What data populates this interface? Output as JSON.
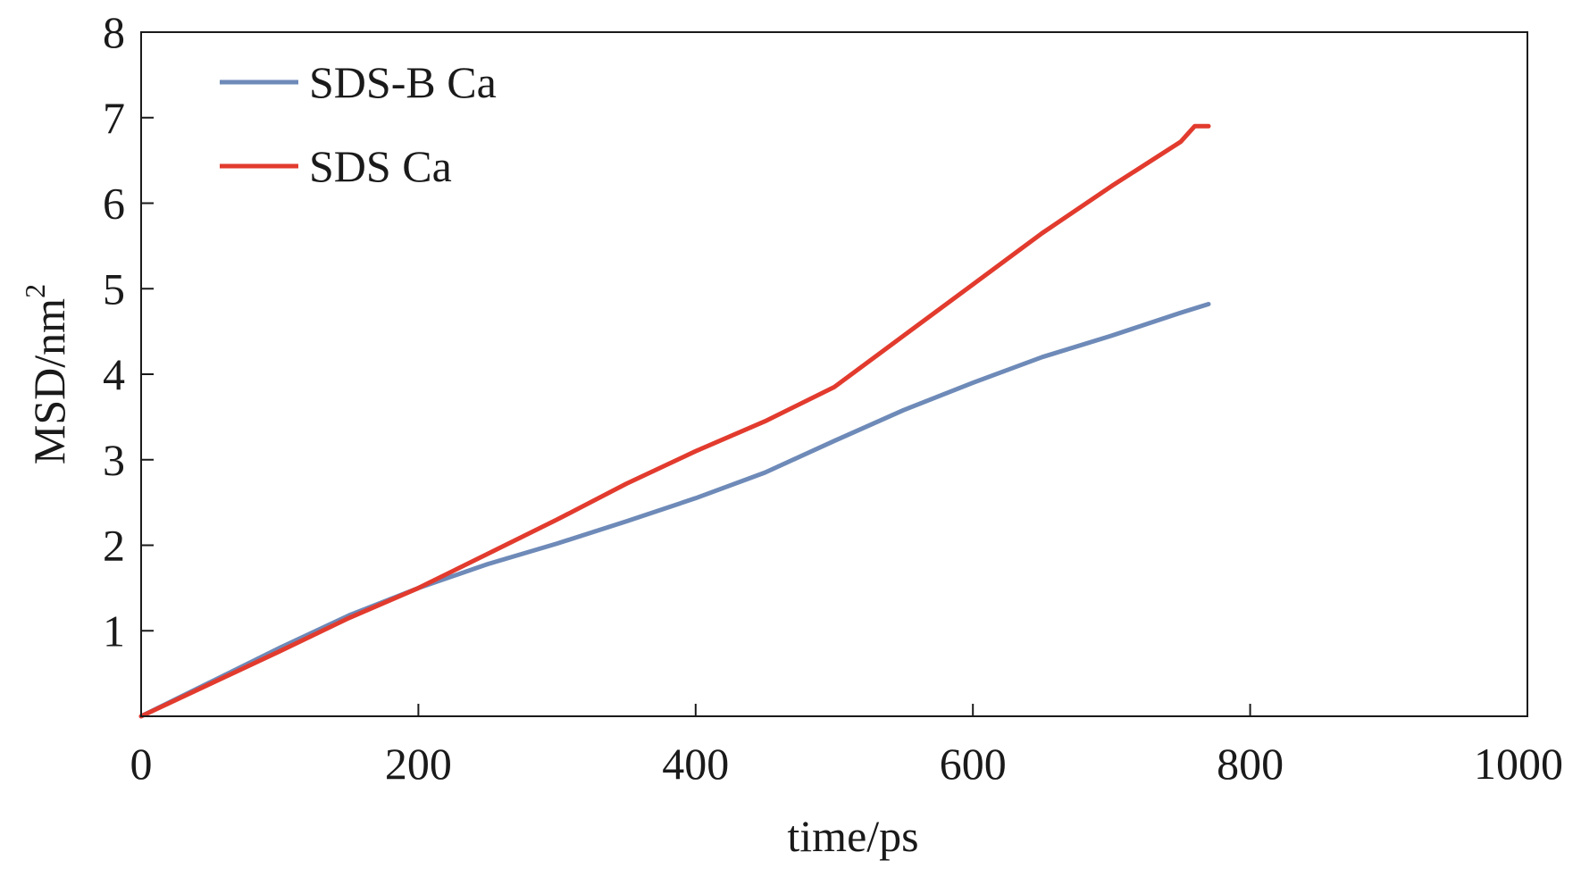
{
  "chart_data": {
    "type": "line",
    "xlabel": "time/ps",
    "ylabel_main": "MSD/nm",
    "ylabel_sup": "2",
    "xlim": [
      0,
      1000
    ],
    "ylim": [
      0,
      8
    ],
    "x_ticks": [
      0,
      200,
      400,
      600,
      800,
      1000
    ],
    "x_tick_labels": [
      "0",
      "200",
      "400",
      "600",
      "800",
      "1000"
    ],
    "y_ticks": [
      1,
      2,
      3,
      4,
      5,
      6,
      7,
      8
    ],
    "y_tick_labels": [
      "1",
      "2",
      "3",
      "4",
      "5",
      "6",
      "7",
      "8"
    ],
    "grid": false,
    "legend_position": "top-left",
    "series": [
      {
        "name": "SDS-B Ca",
        "color": "#6e8ab8",
        "x": [
          0,
          50,
          100,
          150,
          200,
          250,
          300,
          350,
          400,
          450,
          500,
          550,
          600,
          650,
          700,
          750,
          770
        ],
        "y": [
          0,
          0.4,
          0.8,
          1.18,
          1.5,
          1.78,
          2.02,
          2.28,
          2.55,
          2.85,
          3.22,
          3.58,
          3.9,
          4.2,
          4.45,
          4.72,
          4.82
        ]
      },
      {
        "name": "SDS Ca",
        "color": "#e23b2e",
        "x": [
          0,
          50,
          100,
          150,
          200,
          250,
          300,
          350,
          400,
          450,
          500,
          550,
          600,
          650,
          700,
          750,
          760,
          770
        ],
        "y": [
          0,
          0.38,
          0.76,
          1.15,
          1.5,
          1.9,
          2.3,
          2.72,
          3.1,
          3.45,
          3.85,
          4.45,
          5.05,
          5.65,
          6.2,
          6.72,
          6.9,
          6.9
        ]
      }
    ]
  }
}
